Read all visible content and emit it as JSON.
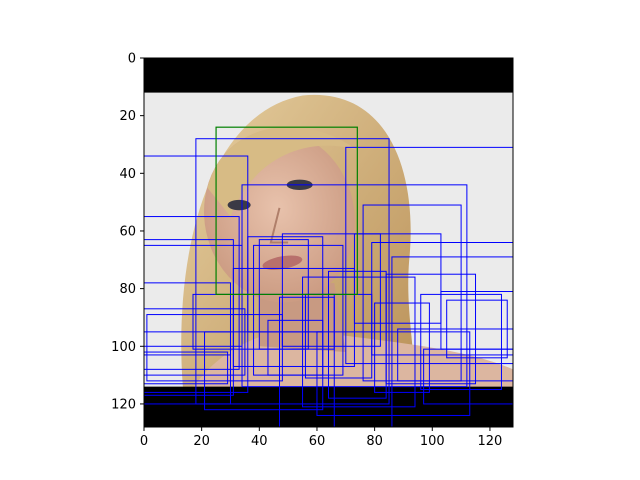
{
  "chart_data": {
    "type": "image_with_bounding_boxes",
    "title": "",
    "xlabel": "",
    "ylabel": "",
    "xlim": [
      0,
      128
    ],
    "ylim": [
      128,
      0
    ],
    "y_inverted": true,
    "x_ticks": [
      0,
      20,
      40,
      60,
      80,
      100,
      120
    ],
    "y_ticks": [
      0,
      20,
      40,
      60,
      80,
      100,
      120
    ],
    "grid": false,
    "legend": "none",
    "image": {
      "subject": "face",
      "letterbox_top": [
        0,
        12
      ],
      "letterbox_bottom": [
        114,
        128
      ]
    },
    "colors": {
      "prediction_boxes": "#0000ff",
      "ground_truth_box": "#008000",
      "letterbox": "#000000",
      "background": "#ebebeb",
      "hair": "#d2b47a",
      "skin": "#dcb29a"
    },
    "ground_truth_box": {
      "x0": 25,
      "y0": 24,
      "x1": 74,
      "y1": 82
    },
    "boxes": [
      {
        "x0": 0,
        "y0": 0,
        "x1": 128,
        "y1": 128
      },
      {
        "x0": 0,
        "y0": 34,
        "x1": 36,
        "y1": 116
      },
      {
        "x0": 0,
        "y0": 55,
        "x1": 33,
        "y1": 108
      },
      {
        "x0": 0,
        "y0": 63,
        "x1": 31,
        "y1": 117
      },
      {
        "x0": 0,
        "y0": 65,
        "x1": 34,
        "y1": 100
      },
      {
        "x0": 0,
        "y0": 78,
        "x1": 30,
        "y1": 103
      },
      {
        "x0": 0,
        "y0": 87,
        "x1": 35,
        "y1": 110
      },
      {
        "x0": 0,
        "y0": 95,
        "x1": 30,
        "y1": 120
      },
      {
        "x0": 0,
        "y0": 102,
        "x1": 29,
        "y1": 113
      },
      {
        "x0": 1,
        "y0": 89,
        "x1": 48,
        "y1": 112
      },
      {
        "x0": 18,
        "y0": 28,
        "x1": 85,
        "y1": 120
      },
      {
        "x0": 17,
        "y0": 82,
        "x1": 66,
        "y1": 101
      },
      {
        "x0": 21,
        "y0": 95,
        "x1": 62,
        "y1": 122
      },
      {
        "x0": 34,
        "y0": 44,
        "x1": 112,
        "y1": 114
      },
      {
        "x0": 31,
        "y0": 73,
        "x1": 73,
        "y1": 107
      },
      {
        "x0": 36,
        "y0": 62,
        "x1": 62,
        "y1": 95
      },
      {
        "x0": 38,
        "y0": 65,
        "x1": 69,
        "y1": 110
      },
      {
        "x0": 40,
        "y0": 63,
        "x1": 57,
        "y1": 101
      },
      {
        "x0": 43,
        "y0": 91,
        "x1": 62,
        "y1": 110
      },
      {
        "x0": 47,
        "y0": 83,
        "x1": 66,
        "y1": 128
      },
      {
        "x0": 48,
        "y0": 61,
        "x1": 82,
        "y1": 100
      },
      {
        "x0": 55,
        "y0": 76,
        "x1": 94,
        "y1": 121
      },
      {
        "x0": 56,
        "y0": 82,
        "x1": 79,
        "y1": 111
      },
      {
        "x0": 60,
        "y0": 95,
        "x1": 113,
        "y1": 124
      },
      {
        "x0": 64,
        "y0": 74,
        "x1": 84,
        "y1": 118
      },
      {
        "x0": 70,
        "y0": 31,
        "x1": 128,
        "y1": 106
      },
      {
        "x0": 73,
        "y0": 61,
        "x1": 103,
        "y1": 92
      },
      {
        "x0": 76,
        "y0": 51,
        "x1": 110,
        "y1": 112
      },
      {
        "x0": 79,
        "y0": 64,
        "x1": 128,
        "y1": 103
      },
      {
        "x0": 80,
        "y0": 85,
        "x1": 99,
        "y1": 116
      },
      {
        "x0": 84,
        "y0": 75,
        "x1": 115,
        "y1": 113
      },
      {
        "x0": 86,
        "y0": 69,
        "x1": 128,
        "y1": 128
      },
      {
        "x0": 88,
        "y0": 94,
        "x1": 128,
        "y1": 112
      },
      {
        "x0": 96,
        "y0": 82,
        "x1": 124,
        "y1": 115
      },
      {
        "x0": 97,
        "y0": 101,
        "x1": 128,
        "y1": 120
      },
      {
        "x0": 103,
        "y0": 81,
        "x1": 128,
        "y1": 101
      },
      {
        "x0": 105,
        "y0": 84,
        "x1": 126,
        "y1": 104
      }
    ]
  }
}
